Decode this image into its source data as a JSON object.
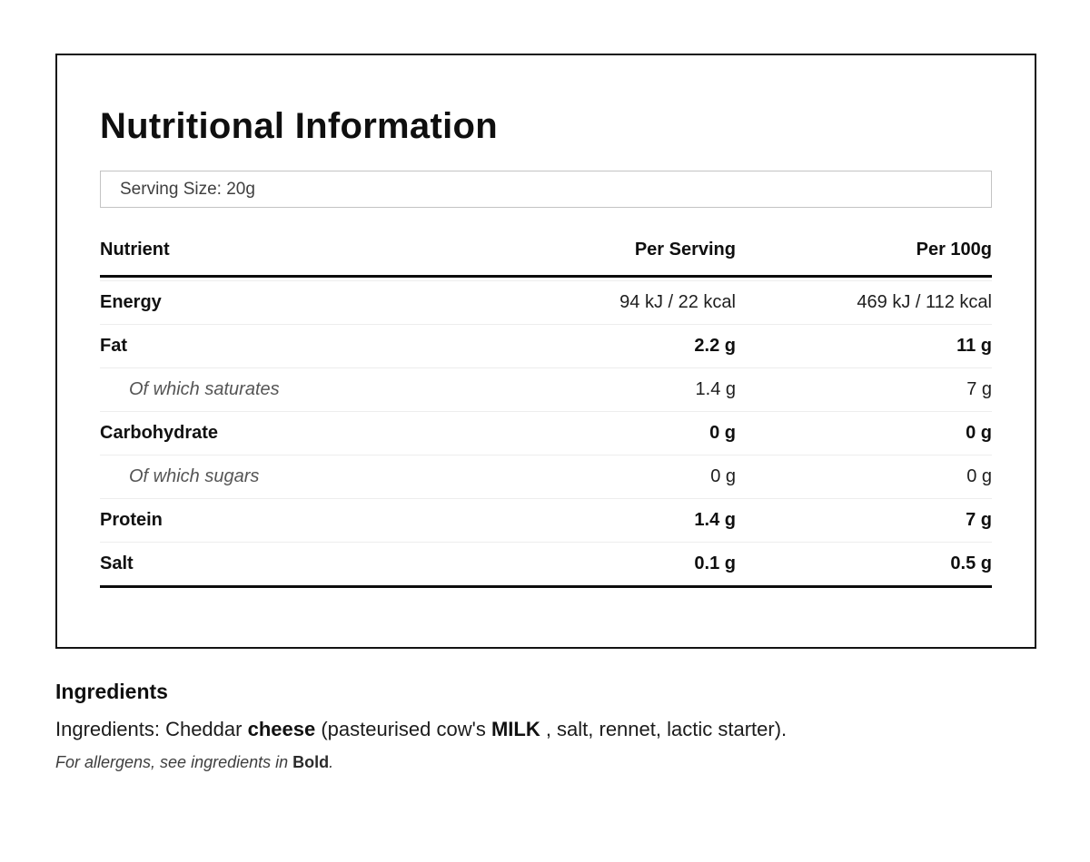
{
  "panel": {
    "title": "Nutritional Information",
    "serving_size": "Serving Size: 20g",
    "table": {
      "headers": [
        "Nutrient",
        "Per Serving",
        "Per 100g"
      ],
      "rows": [
        {
          "nutrient": "Energy",
          "per_serving": "94 kJ / 22 kcal",
          "per_100g": "469 kJ / 112 kcal"
        },
        {
          "nutrient": "Fat",
          "per_serving": "2.2 g",
          "per_100g": "11 g"
        },
        {
          "nutrient": "Of which saturates",
          "per_serving": "1.4 g",
          "per_100g": "7 g"
        },
        {
          "nutrient": "Carbohydrate",
          "per_serving": "0 g",
          "per_100g": "0 g"
        },
        {
          "nutrient": "Of which sugars",
          "per_serving": "0 g",
          "per_100g": "0 g"
        },
        {
          "nutrient": "Protein",
          "per_serving": "1.4 g",
          "per_100g": "7 g"
        },
        {
          "nutrient": "Salt",
          "per_serving": "0.1 g",
          "per_100g": "0.5 g"
        }
      ]
    }
  },
  "ingredients": {
    "heading": "Ingredients",
    "text": {
      "prefix": "Ingredients: Cheddar ",
      "bold1": "cheese",
      "middle": " (pasteurised cow's ",
      "bold2": "MILK",
      "suffix": " , salt, rennet, lactic starter)."
    },
    "allergen": {
      "prefix": "For allergens, see ingredients in ",
      "bold": "Bold",
      "suffix": "."
    }
  },
  "colors": {
    "border_dark": "#131313",
    "rule_thick": "#0c0c0c",
    "rule_thin": "#ededed",
    "serving_border": "#c3c3c3",
    "sub_text": "#555555",
    "text": "#161616"
  }
}
